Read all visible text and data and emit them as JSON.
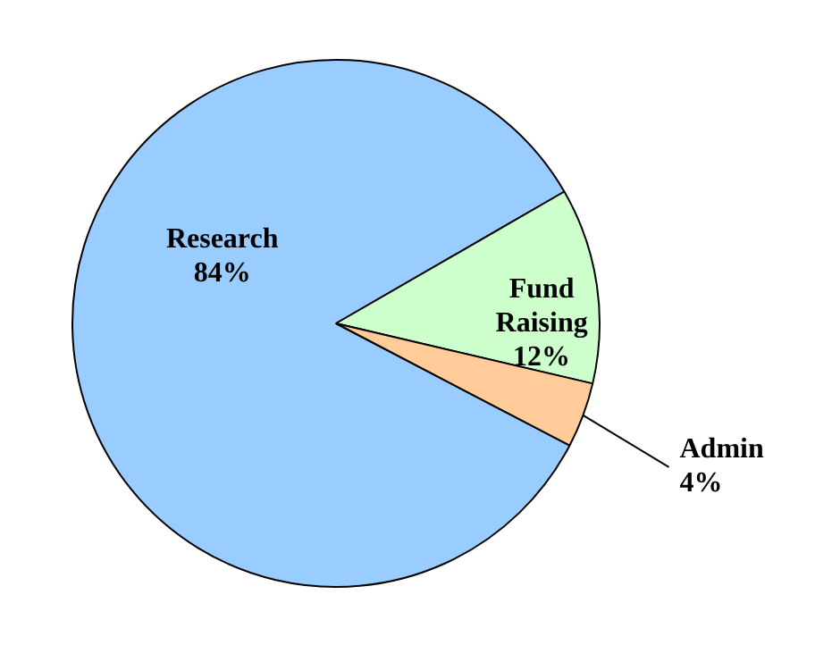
{
  "chart_data": {
    "type": "pie",
    "categories": [
      "Research",
      "Fund Raising",
      "Admin"
    ],
    "values": [
      84,
      12,
      4
    ],
    "value_labels": [
      "84%",
      "12%",
      "4%"
    ],
    "colors": [
      "#99ccff",
      "#ccffcc",
      "#ffcc99"
    ],
    "legend": false
  }
}
